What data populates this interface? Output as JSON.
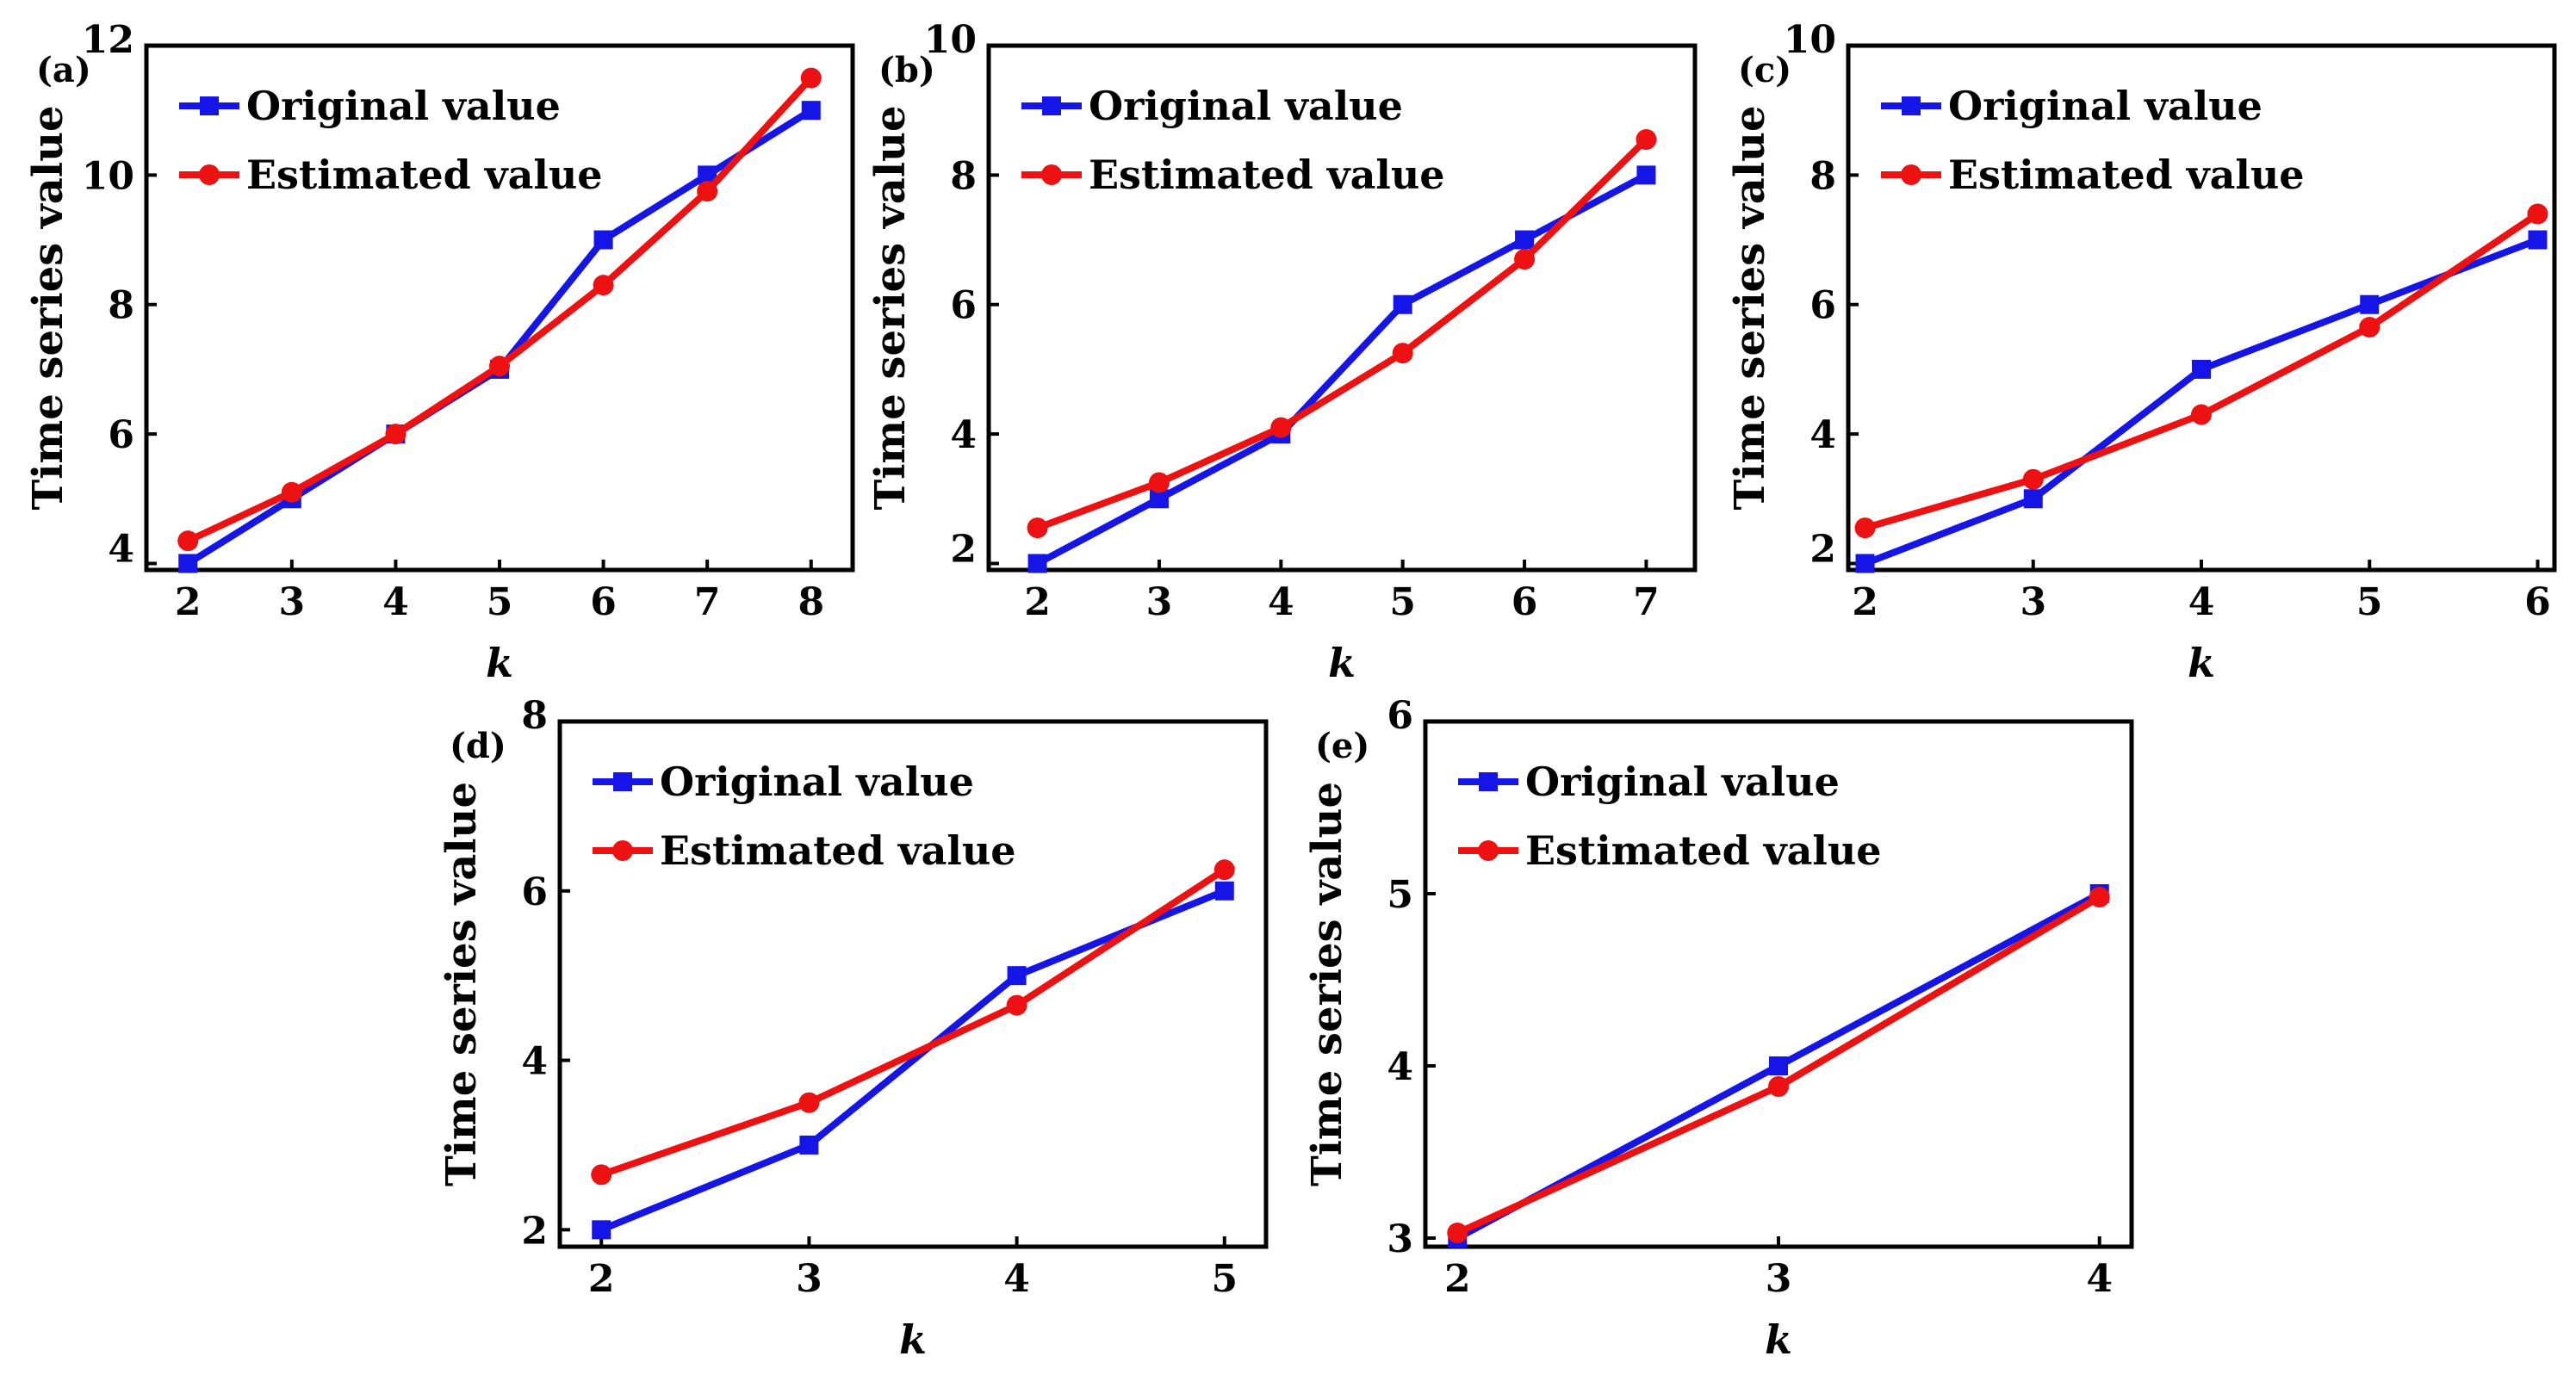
{
  "chart_data": [
    {
      "panel_label": "(a)",
      "type": "line",
      "x": [
        2,
        3,
        4,
        5,
        6,
        7,
        8
      ],
      "series": [
        {
          "name": "Original value",
          "color": "#1515e8",
          "marker": "square",
          "values": [
            4,
            5,
            6,
            7,
            9,
            10,
            11
          ]
        },
        {
          "name": "Estimated value",
          "color": "#ee1111",
          "marker": "circle",
          "values": [
            4.35,
            5.1,
            6.0,
            7.05,
            8.3,
            9.75,
            11.5
          ]
        }
      ],
      "xlabel": "k",
      "ylabel": "Time series value",
      "xlim": [
        1.6,
        8.4
      ],
      "ylim": [
        3.9,
        12
      ],
      "xticks": [
        2,
        3,
        4,
        5,
        6,
        7,
        8
      ],
      "yticks": [
        4,
        6,
        8,
        10,
        12
      ],
      "legend": "top-left"
    },
    {
      "panel_label": "(b)",
      "type": "line",
      "x": [
        2,
        3,
        4,
        5,
        6,
        7
      ],
      "series": [
        {
          "name": "Original value",
          "color": "#1515e8",
          "marker": "square",
          "values": [
            2,
            3,
            4,
            6,
            7,
            8
          ]
        },
        {
          "name": "Estimated value",
          "color": "#ee1111",
          "marker": "circle",
          "values": [
            2.55,
            3.25,
            4.1,
            5.25,
            6.7,
            8.55
          ]
        }
      ],
      "xlabel": "k",
      "ylabel": "Time series value",
      "xlim": [
        1.6,
        7.4
      ],
      "ylim": [
        1.9,
        10
      ],
      "xticks": [
        2,
        3,
        4,
        5,
        6,
        7
      ],
      "yticks": [
        2,
        4,
        6,
        8,
        10
      ],
      "legend": "top-left"
    },
    {
      "panel_label": "(c)",
      "type": "line",
      "x": [
        2,
        3,
        4,
        5,
        6
      ],
      "series": [
        {
          "name": "Original value",
          "color": "#1515e8",
          "marker": "square",
          "values": [
            2,
            3,
            5,
            6,
            7
          ]
        },
        {
          "name": "Estimated value",
          "color": "#ee1111",
          "marker": "circle",
          "values": [
            2.55,
            3.3,
            4.3,
            5.65,
            7.4
          ]
        }
      ],
      "xlabel": "k",
      "ylabel": "Time series value",
      "xlim": [
        1.9,
        6.1
      ],
      "ylim": [
        1.9,
        10
      ],
      "xticks": [
        2,
        3,
        4,
        5,
        6
      ],
      "yticks": [
        2,
        4,
        6,
        8,
        10
      ],
      "legend": "top-left"
    },
    {
      "panel_label": "(d)",
      "type": "line",
      "x": [
        2,
        3,
        4,
        5
      ],
      "series": [
        {
          "name": "Original value",
          "color": "#1515e8",
          "marker": "square",
          "values": [
            2,
            3,
            5,
            6
          ]
        },
        {
          "name": "Estimated value",
          "color": "#ee1111",
          "marker": "circle",
          "values": [
            2.65,
            3.5,
            4.65,
            6.25
          ]
        }
      ],
      "xlabel": "k",
      "ylabel": "Time series value",
      "xlim": [
        1.8,
        5.2
      ],
      "ylim": [
        1.8,
        8
      ],
      "xticks": [
        2,
        3,
        4,
        5
      ],
      "yticks": [
        2,
        4,
        6,
        8
      ],
      "legend": "top-left"
    },
    {
      "panel_label": "(e)",
      "type": "line",
      "x": [
        2,
        3,
        4
      ],
      "series": [
        {
          "name": "Original value",
          "color": "#1515e8",
          "marker": "square",
          "values": [
            3,
            4,
            5
          ]
        },
        {
          "name": "Estimated value",
          "color": "#ee1111",
          "marker": "circle",
          "values": [
            3.03,
            3.88,
            4.98
          ]
        }
      ],
      "xlabel": "k",
      "ylabel": "Time series value",
      "xlim": [
        1.9,
        4.1
      ],
      "ylim": [
        2.95,
        6
      ],
      "xticks": [
        2,
        3,
        4
      ],
      "yticks": [
        3,
        4,
        5,
        6
      ],
      "legend": "top-left"
    }
  ]
}
